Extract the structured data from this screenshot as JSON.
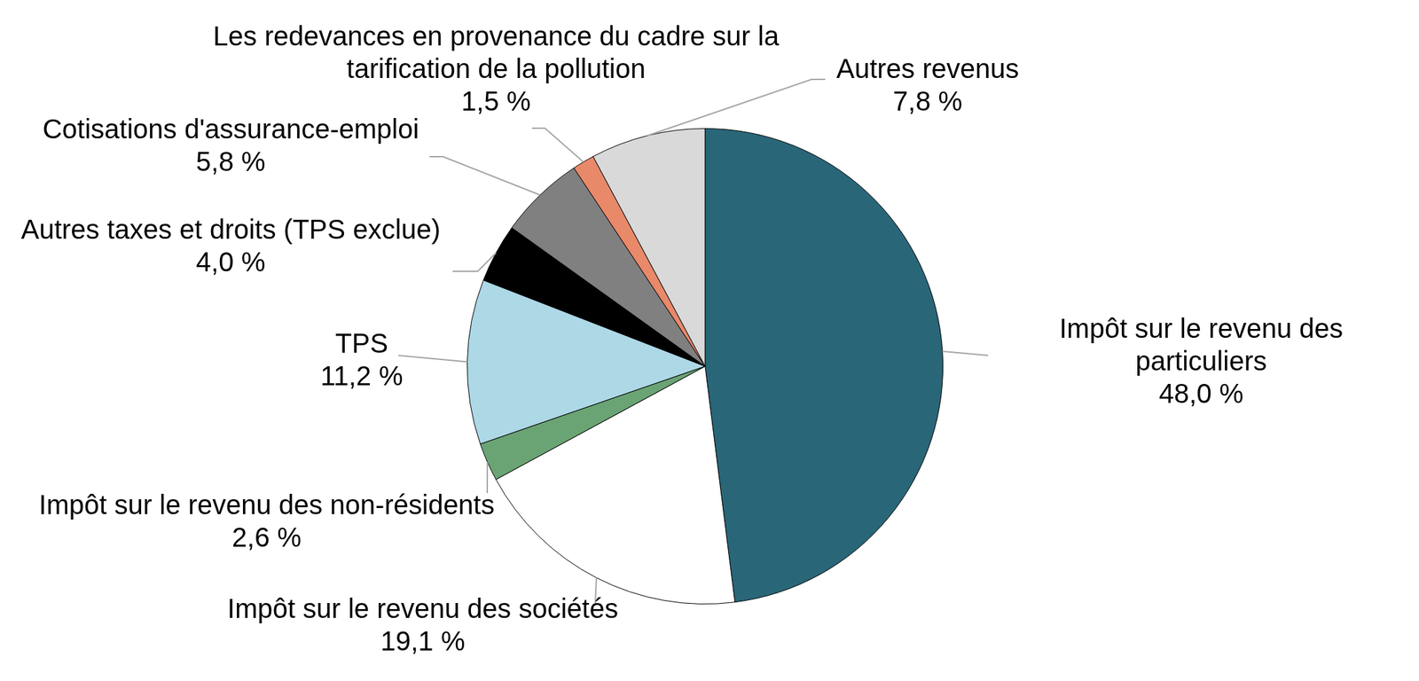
{
  "chart_data": {
    "type": "pie",
    "categories": [
      "Impôt sur le revenu des particuliers",
      "Impôt sur le revenu des sociétés",
      "Impôt sur le revenu des non-résidents",
      "TPS",
      "Autres taxes et droits (TPS exclue)",
      "Cotisations d'assurance-emploi",
      "Les redevances en provenance du cadre sur la tarification de la pollution",
      "Autres revenus"
    ],
    "values": [
      48.0,
      19.1,
      2.6,
      11.2,
      4.0,
      5.8,
      1.5,
      7.8
    ],
    "value_labels": [
      "48,0 %",
      "19,1 %",
      "2,6 %",
      "11,2 %",
      "4,0 %",
      "5,8 %",
      "1,5 %",
      "7,8 %"
    ],
    "colors": [
      "#296678",
      "#ffffff",
      "#6aa474",
      "#add8e6",
      "#000000",
      "#808080",
      "#e8896a",
      "#d9d9d9"
    ],
    "data_labels": true
  }
}
